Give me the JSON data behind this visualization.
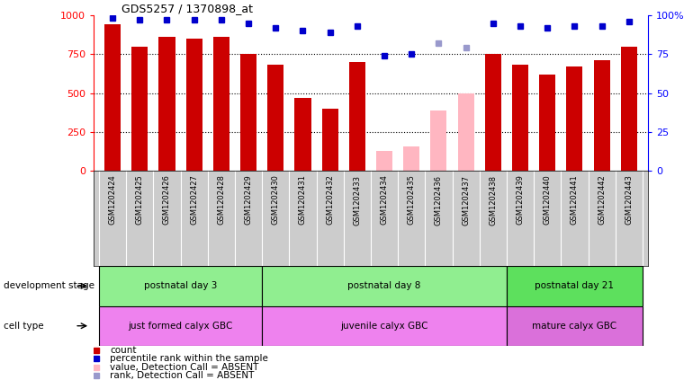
{
  "title": "GDS5257 / 1370898_at",
  "samples": [
    "GSM1202424",
    "GSM1202425",
    "GSM1202426",
    "GSM1202427",
    "GSM1202428",
    "GSM1202429",
    "GSM1202430",
    "GSM1202431",
    "GSM1202432",
    "GSM1202433",
    "GSM1202434",
    "GSM1202435",
    "GSM1202436",
    "GSM1202437",
    "GSM1202438",
    "GSM1202439",
    "GSM1202440",
    "GSM1202441",
    "GSM1202442",
    "GSM1202443"
  ],
  "count_values": [
    940,
    800,
    860,
    850,
    860,
    750,
    680,
    470,
    400,
    700,
    130,
    160,
    390,
    500,
    750,
    680,
    620,
    670,
    710,
    800
  ],
  "absent_count": [
    false,
    false,
    false,
    false,
    false,
    false,
    false,
    false,
    false,
    false,
    true,
    true,
    true,
    true,
    false,
    false,
    false,
    false,
    false,
    false
  ],
  "percentile_rank": [
    98,
    97,
    97,
    97,
    97,
    95,
    92,
    90,
    89,
    93,
    74,
    75,
    82,
    79,
    95,
    93,
    92,
    93,
    93,
    96
  ],
  "absent_rank": [
    false,
    false,
    false,
    false,
    false,
    false,
    false,
    false,
    false,
    false,
    false,
    false,
    true,
    true,
    false,
    false,
    false,
    false,
    false,
    false
  ],
  "dev_stage_groups": [
    {
      "label": "postnatal day 3",
      "start": 0,
      "end": 5,
      "color": "#90EE90"
    },
    {
      "label": "postnatal day 8",
      "start": 6,
      "end": 14,
      "color": "#90EE90"
    },
    {
      "label": "postnatal day 21",
      "start": 15,
      "end": 19,
      "color": "#5DE05D"
    }
  ],
  "cell_type_groups": [
    {
      "label": "just formed calyx GBC",
      "start": 0,
      "end": 5,
      "color": "#EE82EE"
    },
    {
      "label": "juvenile calyx GBC",
      "start": 6,
      "end": 14,
      "color": "#EE82EE"
    },
    {
      "label": "mature calyx GBC",
      "start": 15,
      "end": 19,
      "color": "#DA70DA"
    }
  ],
  "bar_color_present": "#CC0000",
  "bar_color_absent": "#FFB6C1",
  "rank_color_present": "#0000CC",
  "rank_color_absent": "#9999CC",
  "ylim_left": [
    0,
    1000
  ],
  "ylim_right": [
    0,
    100
  ],
  "yticks_left": [
    0,
    250,
    500,
    750,
    1000
  ],
  "yticks_right": [
    0,
    25,
    50,
    75,
    100
  ],
  "dev_label": "development stage",
  "cell_label": "cell type",
  "legend_items": [
    {
      "color": "#CC0000",
      "marker": "s",
      "label": "count"
    },
    {
      "color": "#0000CC",
      "marker": "s",
      "label": "percentile rank within the sample"
    },
    {
      "color": "#FFB6C1",
      "marker": "s",
      "label": "value, Detection Call = ABSENT"
    },
    {
      "color": "#9999CC",
      "marker": "s",
      "label": "rank, Detection Call = ABSENT"
    }
  ]
}
